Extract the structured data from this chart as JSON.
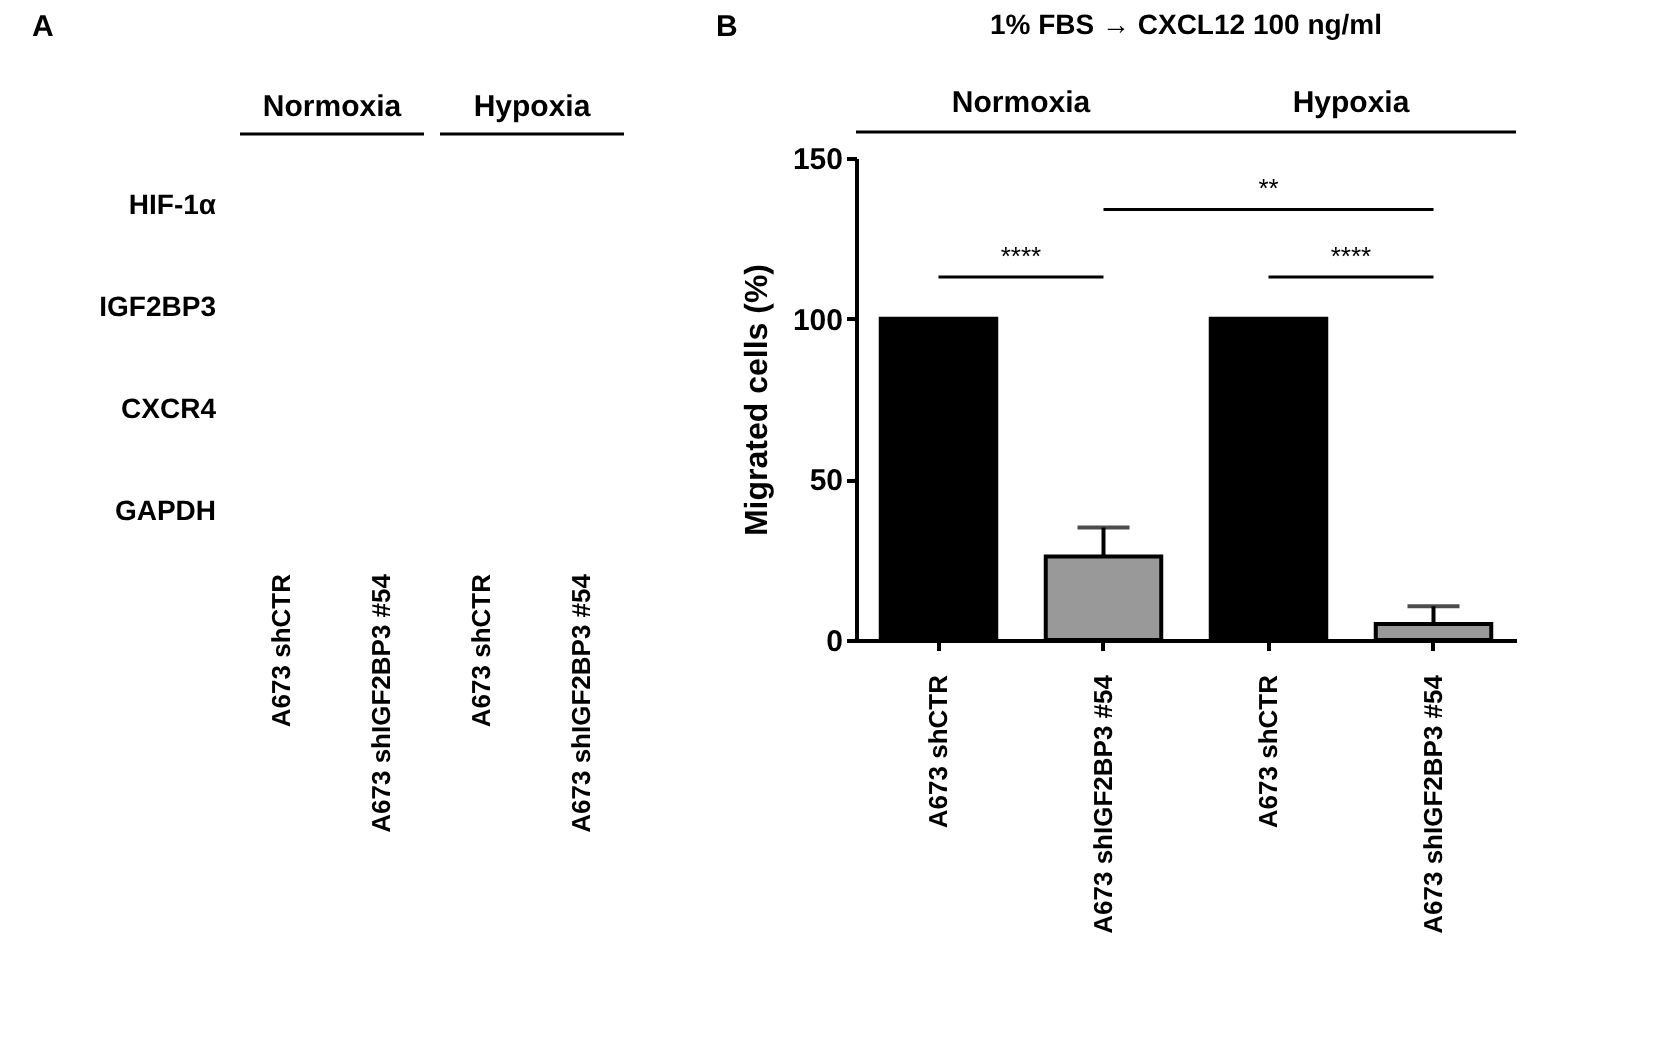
{
  "chart_data": [
    {
      "type": "other",
      "title": "A",
      "categories": [
        "A673 shCTR",
        "A673 shIGF2BP3 #54",
        "A673 shCTR",
        "A673 shIGF2BP3 #54"
      ],
      "annotations": [
        "Normoxia",
        "Hypoxia",
        "HIF-1α",
        "IGF2BP3",
        "CXCR4",
        "GAPDH"
      ]
    },
    {
      "type": "bar",
      "title": "1% FBS → CXCL12 100 ng/ml",
      "ylabel": "Migrated cells (%)",
      "categories": [
        "A673 shCTR",
        "A673 shIGF2BP3 #54",
        "A673 shCTR",
        "A673 shIGF2BP3 #54"
      ],
      "values": [
        100,
        26,
        100,
        5
      ],
      "errors": [
        null,
        [
          26,
          35
        ],
        null,
        [
          5,
          10.5
        ]
      ],
      "colors": [
        "#000000",
        "#999999",
        "#000000",
        "#999999"
      ],
      "ylim": [
        0,
        150
      ],
      "yticks": [
        0,
        50,
        100,
        150
      ],
      "grid": false,
      "annotations": [
        "B",
        "Normoxia",
        "Hypoxia",
        "****",
        "**",
        "****"
      ]
    }
  ]
}
